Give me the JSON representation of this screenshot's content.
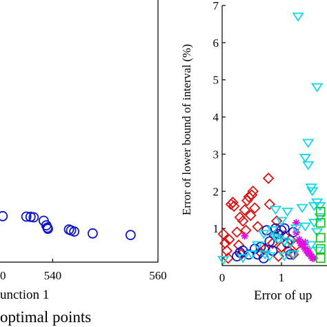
{
  "chart_data": [
    {
      "type": "scatter",
      "xlabel": "unction 1",
      "caption": "optimal points",
      "xlim": [
        530,
        560
      ],
      "ylim": [
        0,
        3
      ],
      "xticks": [
        540,
        560
      ],
      "xtick_partial_label": "0",
      "series": [
        {
          "color": "#0a14c8",
          "marker": "circle",
          "points": [
            [
              530.5,
              2.0
            ],
            [
              535.0,
              1.98
            ],
            [
              535.8,
              1.97
            ],
            [
              536.4,
              1.95
            ],
            [
              538.3,
              1.8
            ],
            [
              538.8,
              1.6
            ],
            [
              539.0,
              1.5
            ],
            [
              539.1,
              1.45
            ],
            [
              543.1,
              1.42
            ],
            [
              543.5,
              1.38
            ],
            [
              544.1,
              1.33
            ],
            [
              547.6,
              1.25
            ],
            [
              554.8,
              1.18
            ]
          ]
        }
      ]
    },
    {
      "type": "scatter",
      "ylabel": "Error of lower bound of interval (%)",
      "xlabel": "Error of up",
      "xlim": [
        0,
        1.7
      ],
      "ylim": [
        0,
        7
      ],
      "xticks": [
        0,
        1
      ],
      "yticks": [
        1,
        2,
        3,
        4,
        5,
        6,
        7
      ],
      "series": [
        {
          "color": "#e01010",
          "marker": "diamond",
          "points": [
            [
              0.02,
              0.85
            ],
            [
              0.05,
              0.6
            ],
            [
              0.08,
              0.4
            ],
            [
              0.1,
              0.2
            ],
            [
              0.12,
              0.7
            ],
            [
              0.15,
              1.65
            ],
            [
              0.18,
              1.7
            ],
            [
              0.2,
              1.6
            ],
            [
              0.25,
              0.9
            ],
            [
              0.28,
              0.55
            ],
            [
              0.3,
              1.3
            ],
            [
              0.32,
              0.3
            ],
            [
              0.35,
              1.2
            ],
            [
              0.38,
              1.5
            ],
            [
              0.4,
              0.95
            ],
            [
              0.42,
              1.75
            ],
            [
              0.45,
              1.85
            ],
            [
              0.48,
              1.35
            ],
            [
              0.5,
              1.9
            ],
            [
              0.52,
              2.0
            ],
            [
              0.55,
              1.55
            ],
            [
              0.6,
              1.05
            ],
            [
              0.65,
              0.35
            ],
            [
              0.72,
              0.45
            ],
            [
              0.8,
              1.65
            ],
            [
              0.85,
              0.6
            ],
            [
              0.88,
              0.8
            ],
            [
              0.92,
              1.2
            ],
            [
              0.95,
              0.25
            ],
            [
              1.0,
              0.5
            ],
            [
              1.05,
              0.8
            ],
            [
              1.12,
              0.4
            ],
            [
              1.15,
              0.7
            ],
            [
              1.2,
              0.3
            ],
            [
              0.78,
              2.35
            ],
            [
              1.25,
              0.55
            ]
          ]
        },
        {
          "color": "#0a14c8",
          "marker": "circle",
          "points": [
            [
              0.25,
              0.25
            ],
            [
              0.3,
              0.35
            ],
            [
              0.35,
              0.4
            ],
            [
              0.45,
              0.3
            ],
            [
              0.55,
              0.45
            ],
            [
              0.6,
              0.3
            ],
            [
              0.7,
              0.2
            ],
            [
              0.75,
              0.95
            ],
            [
              0.8,
              0.65
            ],
            [
              0.85,
              0.4
            ],
            [
              0.9,
              1.0
            ],
            [
              0.95,
              0.85
            ],
            [
              1.0,
              0.95
            ],
            [
              1.05,
              1.0
            ],
            [
              1.1,
              0.6
            ],
            [
              1.15,
              0.3
            ],
            [
              0.65,
              0.5
            ],
            [
              1.2,
              0.9
            ]
          ]
        },
        {
          "color": "#e010e0",
          "marker": "asterisk",
          "points": [
            [
              0.38,
              0.8
            ],
            [
              1.25,
              1.15
            ],
            [
              1.25,
              0.9
            ],
            [
              1.3,
              0.7
            ],
            [
              1.32,
              0.6
            ],
            [
              1.35,
              0.55
            ],
            [
              1.38,
              0.5
            ],
            [
              1.4,
              0.45
            ],
            [
              1.42,
              0.4
            ],
            [
              1.45,
              0.35
            ],
            [
              1.48,
              0.3
            ],
            [
              1.5,
              0.25
            ],
            [
              1.52,
              0.2
            ],
            [
              1.55,
              0.2
            ],
            [
              1.36,
              0.6
            ],
            [
              1.44,
              0.42
            ],
            [
              1.46,
              0.33
            ],
            [
              1.4,
              0.62
            ]
          ]
        },
        {
          "color": "#10d8e8",
          "marker": "triangle-down",
          "points": [
            [
              1.28,
              6.7
            ],
            [
              1.6,
              4.8
            ],
            [
              1.45,
              3.3
            ],
            [
              1.4,
              2.9
            ],
            [
              1.45,
              2.7
            ],
            [
              1.5,
              2.1
            ],
            [
              1.52,
              2.0
            ],
            [
              1.55,
              1.6
            ],
            [
              1.6,
              1.7
            ],
            [
              1.65,
              1.6
            ],
            [
              0.9,
              1.5
            ],
            [
              1.1,
              1.45
            ],
            [
              1.35,
              1.55
            ],
            [
              1.0,
              1.2
            ],
            [
              0.85,
              0.95
            ],
            [
              0.9,
              0.75
            ],
            [
              0.95,
              0.7
            ],
            [
              1.05,
              0.65
            ],
            [
              1.15,
              0.6
            ],
            [
              1.25,
              1.0
            ],
            [
              1.4,
              1.05
            ],
            [
              1.55,
              1.15
            ],
            [
              1.6,
              0.9
            ],
            [
              1.65,
              1.3
            ],
            [
              1.5,
              0.55
            ],
            [
              0.02,
              0.15
            ],
            [
              0.35,
              0.2
            ],
            [
              0.5,
              0.3
            ],
            [
              0.6,
              0.55
            ],
            [
              0.7,
              0.85
            ],
            [
              0.72,
              0.3
            ],
            [
              0.8,
              0.25
            ],
            [
              1.05,
              0.25
            ],
            [
              1.2,
              0.3
            ],
            [
              1.62,
              0.4
            ]
          ]
        },
        {
          "color": "#20c020",
          "marker": "square",
          "points": [
            [
              1.66,
              1.15
            ],
            [
              1.66,
              0.75
            ],
            [
              1.66,
              0.45
            ],
            [
              1.66,
              0.2
            ],
            [
              1.66,
              1.45
            ]
          ]
        }
      ]
    }
  ]
}
